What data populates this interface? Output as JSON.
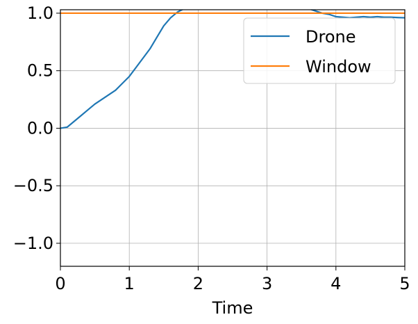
{
  "chart_data": {
    "type": "line",
    "title": "",
    "xlabel": "Time",
    "ylabel": "",
    "xlim": [
      0,
      5
    ],
    "ylim": [
      -1.2,
      1.03
    ],
    "xticks": [
      0,
      1,
      2,
      3,
      4,
      5
    ],
    "xtick_labels": [
      "0",
      "1",
      "2",
      "3",
      "4",
      "5"
    ],
    "yticks": [
      -1.0,
      -0.5,
      0.0,
      0.5,
      1.0
    ],
    "ytick_labels": [
      "−1.0",
      "−0.5",
      "0.0",
      "0.5",
      "1.0"
    ],
    "grid": true,
    "legend_position": "top-right",
    "series": [
      {
        "name": "Drone",
        "color": "#1f77b4",
        "x": [
          0,
          0.1,
          0.2,
          0.3,
          0.4,
          0.5,
          0.6,
          0.7,
          0.8,
          0.9,
          1.0,
          1.1,
          1.2,
          1.3,
          1.4,
          1.5,
          1.6,
          1.7,
          1.8,
          1.9,
          2.0,
          2.2,
          2.5,
          2.8,
          3.0,
          3.2,
          3.4,
          3.6,
          3.7,
          3.8,
          3.9,
          4.0,
          4.1,
          4.2,
          4.3,
          4.4,
          4.5,
          4.6,
          4.7,
          4.8,
          4.9,
          5.0
        ],
        "y": [
          0.0,
          0.01,
          0.06,
          0.11,
          0.16,
          0.21,
          0.25,
          0.29,
          0.33,
          0.39,
          0.45,
          0.53,
          0.61,
          0.69,
          0.79,
          0.89,
          0.96,
          1.01,
          1.04,
          1.06,
          1.07,
          1.08,
          1.08,
          1.08,
          1.08,
          1.07,
          1.06,
          1.04,
          1.02,
          1.0,
          0.99,
          0.97,
          0.965,
          0.96,
          0.965,
          0.97,
          0.965,
          0.97,
          0.965,
          0.965,
          0.962,
          0.96
        ]
      },
      {
        "name": "Window",
        "color": "#ff7f0e",
        "x": [
          0,
          5
        ],
        "y": [
          1.0,
          1.0
        ]
      }
    ]
  }
}
